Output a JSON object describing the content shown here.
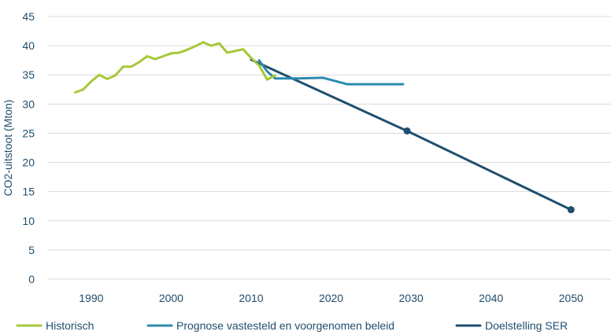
{
  "chart_data": {
    "type": "line",
    "title": "",
    "xlabel": "",
    "ylabel": "CO2-uitstoot (Mton)",
    "xlim": [
      1984.5,
      2055
    ],
    "ylim": [
      0,
      45
    ],
    "x_ticks": [
      1990,
      2000,
      2010,
      2020,
      2030,
      2040,
      2050
    ],
    "y_ticks": [
      0,
      5,
      10,
      15,
      20,
      25,
      30,
      35,
      40,
      45
    ],
    "grid": "horizontal",
    "legend_position": "bottom",
    "series": [
      {
        "name": "Historisch",
        "color": "#a6c83a",
        "markers": false,
        "points": [
          [
            1988,
            32.0
          ],
          [
            1989,
            32.5
          ],
          [
            1990,
            33.9
          ],
          [
            1991,
            35.0
          ],
          [
            1992,
            34.3
          ],
          [
            1993,
            34.9
          ],
          [
            1994,
            36.4
          ],
          [
            1995,
            36.4
          ],
          [
            1996,
            37.2
          ],
          [
            1997,
            38.2
          ],
          [
            1998,
            37.7
          ],
          [
            1999,
            38.2
          ],
          [
            2000,
            38.7
          ],
          [
            2001,
            38.8
          ],
          [
            2002,
            39.3
          ],
          [
            2003,
            39.9
          ],
          [
            2004,
            40.6
          ],
          [
            2005,
            40.0
          ],
          [
            2006,
            40.4
          ],
          [
            2007,
            38.8
          ],
          [
            2008,
            39.1
          ],
          [
            2009,
            39.4
          ],
          [
            2010,
            37.9
          ],
          [
            2011,
            36.6
          ],
          [
            2012,
            34.2
          ],
          [
            2013,
            34.9
          ]
        ]
      },
      {
        "name": "Prognose vastesteld en voorgenomen beleid",
        "color": "#2d8ab0",
        "markers": false,
        "points": [
          [
            2011,
            37.5
          ],
          [
            2012,
            35.6
          ],
          [
            2013,
            34.4
          ],
          [
            2016,
            34.4
          ],
          [
            2019,
            34.5
          ],
          [
            2022,
            33.4
          ],
          [
            2025,
            33.4
          ],
          [
            2029,
            33.4
          ]
        ]
      },
      {
        "name": "Doelstelling SER",
        "color": "#1f4e6e",
        "markers": true,
        "marker_points": [
          [
            2029.5,
            25.4
          ],
          [
            2050,
            11.9
          ]
        ],
        "points": [
          [
            2010,
            37.6
          ],
          [
            2029.5,
            25.4
          ],
          [
            2050,
            11.9
          ]
        ]
      }
    ]
  }
}
